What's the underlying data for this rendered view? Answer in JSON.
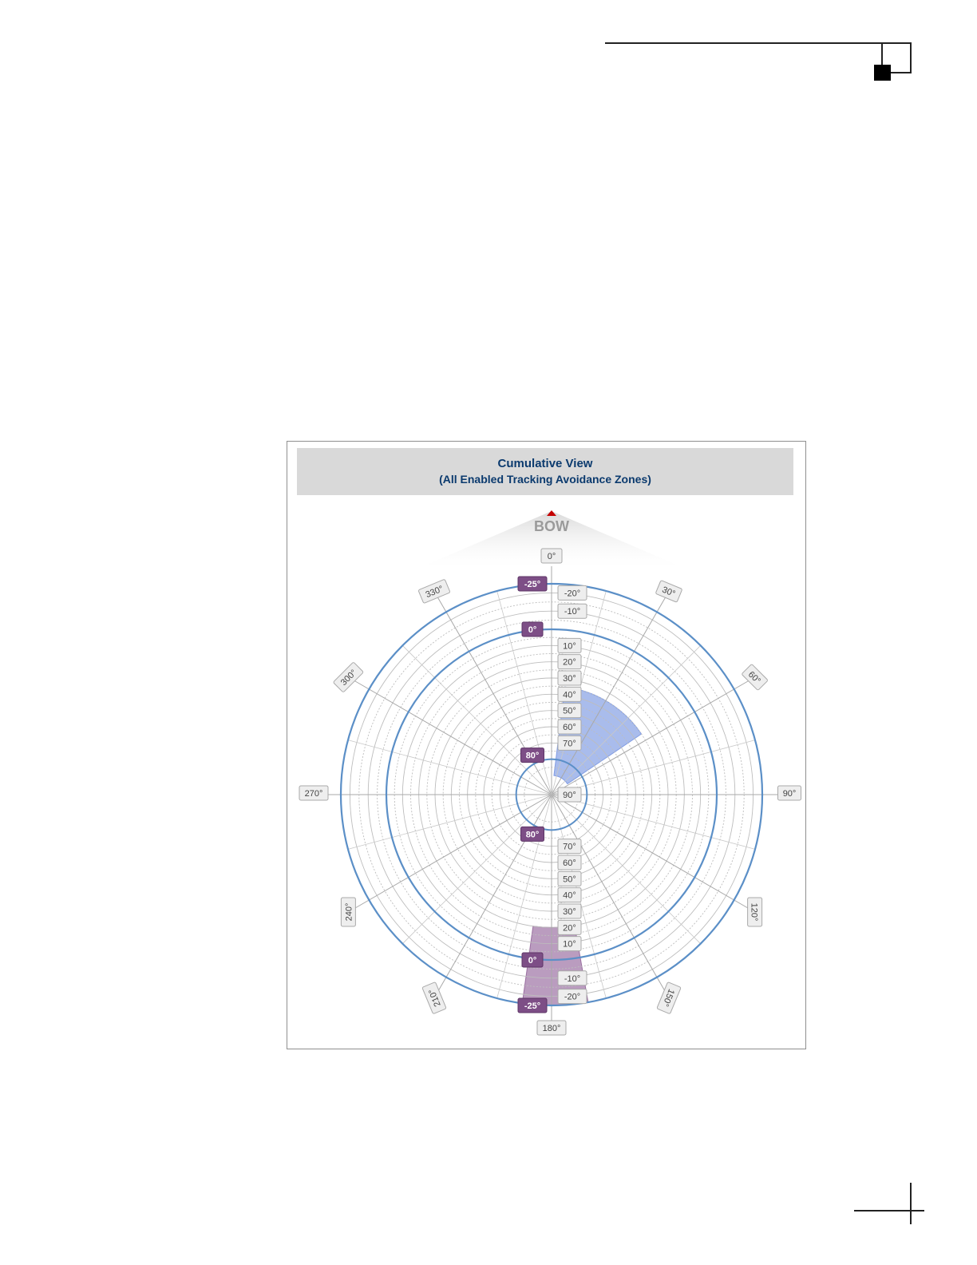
{
  "header": {
    "title": "Cumulative View",
    "subtitle": "(All Enabled Tracking Avoidance Zones)"
  },
  "bow_label": "BOW",
  "colors": {
    "title_text": "#0b3a6e",
    "title_background": "#d9d9d9",
    "elevation_ring": "#5b8fc7",
    "azimuth_zone": "#6f8fe0",
    "elevation_zone": "#8c5a94",
    "grid": "#bdbdbd",
    "bow_marker": "#c40000"
  },
  "azimuth_labels": [
    "0°",
    "30°",
    "60°",
    "90°",
    "120°",
    "150°",
    "180°",
    "210°",
    "240°",
    "270°",
    "300°",
    "330°"
  ],
  "elevation_scale_upper": [
    "-20°",
    "-10°",
    "10°",
    "20°",
    "30°",
    "40°",
    "50°",
    "60°",
    "70°"
  ],
  "elevation_scale_center": "90°",
  "elevation_scale_lower": [
    "70°",
    "60°",
    "50°",
    "40°",
    "30°",
    "20°",
    "10°",
    "-10°",
    "-20°"
  ],
  "elevation_limit_tags": {
    "outer_top": "-25°",
    "zero_top": "0°",
    "inner_top": "80°",
    "inner_bottom": "80°",
    "zero_bottom": "0°",
    "outer_bottom": "-25°"
  },
  "zones": [
    {
      "kind": "azimuth",
      "from_az": 7,
      "to_az": 56,
      "from_el": 90,
      "to_el": 35
    },
    {
      "kind": "elevation",
      "from_az": 170,
      "to_az": 188,
      "from_el": 20,
      "to_el": -25
    }
  ]
}
